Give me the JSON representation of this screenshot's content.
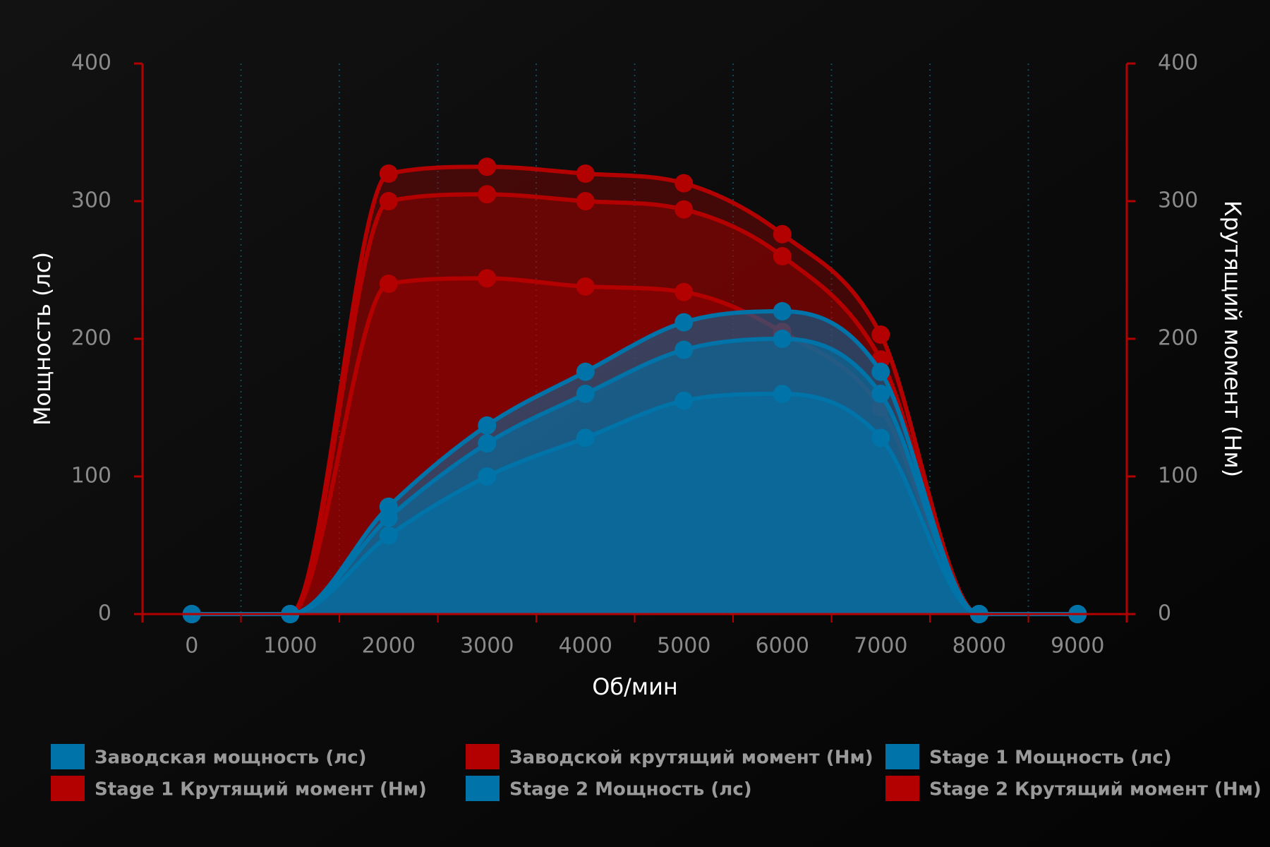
{
  "chart_data": {
    "type": "area",
    "x_label": "Об/мин",
    "y_label": "Мощность (лс)",
    "y2_label": "Крутящий момент (Нм)",
    "x": [
      0,
      1000,
      2000,
      3000,
      4000,
      5000,
      6000,
      7000,
      8000,
      9000
    ],
    "xlim": [
      -500,
      9500
    ],
    "xticks": [
      0,
      1000,
      2000,
      3000,
      4000,
      5000,
      6000,
      7000,
      8000,
      9000
    ],
    "xminorticks": [
      -500,
      500,
      1500,
      2500,
      3500,
      4500,
      5500,
      6500,
      7500,
      8500,
      9500
    ],
    "ylim": [
      0,
      400
    ],
    "yticks": [
      0,
      100,
      200,
      300,
      400
    ],
    "y2lim": [
      0,
      400
    ],
    "y2ticks": [
      0,
      100,
      200,
      300,
      400
    ],
    "grid": true,
    "legend": "bottom",
    "series": [
      {
        "name": "Заводская мощность (лс)",
        "color": "#0073a8",
        "values": [
          0,
          0,
          57,
          100,
          128,
          155,
          160,
          128,
          0,
          0
        ]
      },
      {
        "name": "Заводской крутящий момент (Нм)",
        "color": "#b30000",
        "axis": "y2",
        "values": [
          0,
          0,
          240,
          244,
          238,
          234,
          205,
          150,
          0,
          0
        ]
      },
      {
        "name": "Stage 1 Мощность (лс)",
        "color": "#0073a8",
        "values": [
          0,
          0,
          70,
          124,
          160,
          192,
          200,
          160,
          0,
          0
        ]
      },
      {
        "name": "Stage 1 Крутящий момент (Нм)",
        "color": "#b30000",
        "axis": "y2",
        "values": [
          0,
          0,
          300,
          305,
          300,
          294,
          260,
          185,
          0,
          0
        ]
      },
      {
        "name": "Stage 2 Мощность (лс)",
        "color": "#0073a8",
        "values": [
          0,
          0,
          78,
          137,
          176,
          212,
          220,
          176,
          0,
          0
        ]
      },
      {
        "name": "Stage 2 Крутящий момент (Нм)",
        "color": "#b30000",
        "axis": "y2",
        "values": [
          0,
          0,
          320,
          325,
          320,
          313,
          276,
          203,
          0,
          0
        ]
      }
    ]
  }
}
